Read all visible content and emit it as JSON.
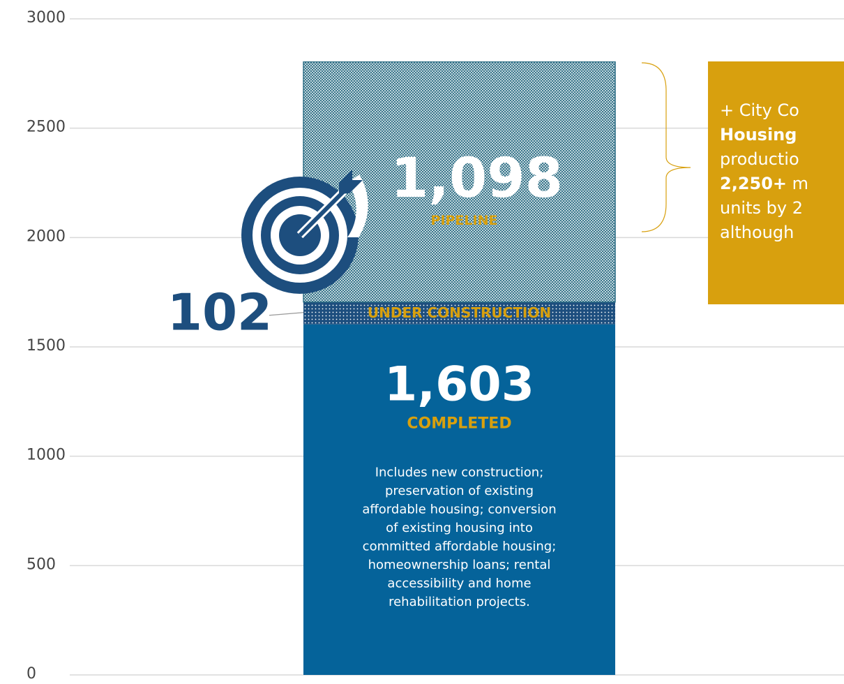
{
  "chart_data": {
    "type": "stacked_bar",
    "categories": [
      null
    ],
    "series": [
      {
        "name": "COMPLETED",
        "color": "#05639a",
        "values": [
          1603
        ],
        "value_labels": [
          "1,603"
        ]
      },
      {
        "name": "UNDER CONSTRUCTION",
        "color": "#1d4e7e",
        "values": [
          102
        ],
        "value_labels": [
          "102"
        ]
      },
      {
        "name": "PIPELINE",
        "color": "#2e6f86",
        "values": [
          1098
        ],
        "value_labels": [
          "1,098"
        ]
      }
    ],
    "description": [
      "Includes new construction;",
      "preservation of existing",
      "affordable housing; conversion",
      "of existing housing into",
      "committed affordable housing;",
      "homeownership loans; rental",
      "accessibility and home",
      "rehabilitation projects."
    ],
    "annotation": {
      "color": "#d8a00e",
      "lines": [
        [
          {
            "text": "+ City Co"
          }
        ],
        [
          {
            "text": "Housing",
            "bold": true
          }
        ],
        [
          {
            "text": "productio"
          }
        ],
        [
          {
            "text": "2,250+",
            "bold": true
          },
          {
            "text": " m"
          }
        ],
        [
          {
            "text": "units by 2"
          }
        ],
        [
          {
            "text": "although"
          }
        ]
      ]
    },
    "ylim": [
      0,
      3000
    ],
    "yticks": [
      0,
      500,
      1000,
      1500,
      2000,
      2500,
      3000
    ],
    "grid": true
  }
}
